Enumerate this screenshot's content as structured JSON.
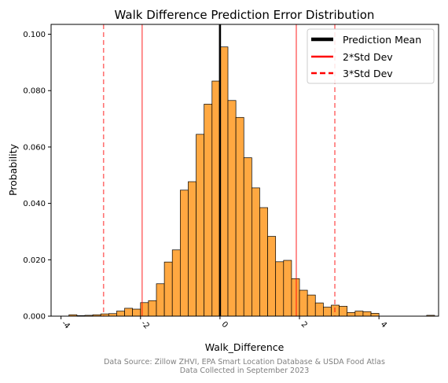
{
  "chart_data": {
    "type": "bar",
    "title": "Walk Difference Prediction Error Distribution",
    "xlabel": "Walk_Difference",
    "ylabel": "Probability",
    "xlim": [
      -4.25,
      5.5
    ],
    "ylim": [
      0,
      0.1035
    ],
    "x_ticks": [
      -4,
      -2,
      0,
      2,
      4
    ],
    "x_tick_labels": [
      "-4",
      "-2",
      "0",
      "2",
      "4"
    ],
    "y_ticks": [
      0,
      0.02,
      0.04,
      0.06,
      0.08,
      0.1
    ],
    "y_tick_labels": [
      "0.000",
      "0.020",
      "0.040",
      "0.060",
      "0.080",
      "0.100"
    ],
    "bin_width": 0.2,
    "bins": [
      {
        "x0": -3.8,
        "value": 0.0005
      },
      {
        "x0": -3.6,
        "value": 0.0002
      },
      {
        "x0": -3.4,
        "value": 0.0003
      },
      {
        "x0": -3.2,
        "value": 0.0005
      },
      {
        "x0": -3.0,
        "value": 0.0008
      },
      {
        "x0": -2.8,
        "value": 0.0009
      },
      {
        "x0": -2.6,
        "value": 0.0018
      },
      {
        "x0": -2.4,
        "value": 0.0028
      },
      {
        "x0": -2.2,
        "value": 0.0025
      },
      {
        "x0": -2.0,
        "value": 0.0048
      },
      {
        "x0": -1.8,
        "value": 0.0055
      },
      {
        "x0": -1.6,
        "value": 0.0115
      },
      {
        "x0": -1.4,
        "value": 0.0192
      },
      {
        "x0": -1.2,
        "value": 0.0235
      },
      {
        "x0": -1.0,
        "value": 0.0447
      },
      {
        "x0": -0.8,
        "value": 0.0477
      },
      {
        "x0": -0.6,
        "value": 0.0645
      },
      {
        "x0": -0.4,
        "value": 0.0752
      },
      {
        "x0": -0.2,
        "value": 0.0834
      },
      {
        "x0": 0.0,
        "value": 0.0955
      },
      {
        "x0": 0.2,
        "value": 0.0765
      },
      {
        "x0": 0.4,
        "value": 0.0705
      },
      {
        "x0": 0.6,
        "value": 0.0562
      },
      {
        "x0": 0.8,
        "value": 0.0455
      },
      {
        "x0": 1.0,
        "value": 0.0385
      },
      {
        "x0": 1.2,
        "value": 0.0283
      },
      {
        "x0": 1.4,
        "value": 0.0193
      },
      {
        "x0": 1.6,
        "value": 0.0198
      },
      {
        "x0": 1.8,
        "value": 0.0133
      },
      {
        "x0": 2.0,
        "value": 0.0092
      },
      {
        "x0": 2.2,
        "value": 0.0075
      },
      {
        "x0": 2.4,
        "value": 0.0047
      },
      {
        "x0": 2.6,
        "value": 0.0032
      },
      {
        "x0": 2.8,
        "value": 0.0039
      },
      {
        "x0": 3.0,
        "value": 0.0035
      },
      {
        "x0": 3.2,
        "value": 0.0013
      },
      {
        "x0": 3.4,
        "value": 0.0018
      },
      {
        "x0": 3.6,
        "value": 0.0016
      },
      {
        "x0": 3.8,
        "value": 0.001
      },
      {
        "x0": 5.2,
        "value": 0.0003
      }
    ],
    "bar_color": "#ffa841",
    "bar_edge_color": "#000000",
    "mean": 0.0,
    "std2_lines": [
      -1.96,
      1.92
    ],
    "std3_lines": [
      -2.93,
      2.89
    ],
    "legend": {
      "placement": "top-right",
      "entries": [
        {
          "label": "Prediction Mean",
          "color": "#000000",
          "style": "solid-thick"
        },
        {
          "label": "2*Std Dev",
          "color": "#ff0000",
          "style": "solid"
        },
        {
          "label": "3*Std Dev",
          "color": "#ff0000",
          "style": "dashed"
        }
      ]
    },
    "grid": false
  },
  "footer": {
    "line1": "Data Source: Zillow ZHVI, EPA Smart Location Database & USDA Food Atlas",
    "line2": "Data Collected in September 2023"
  }
}
